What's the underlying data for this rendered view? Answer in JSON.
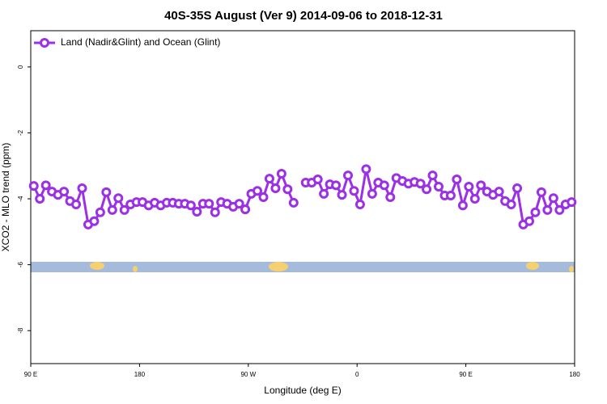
{
  "chart_data": {
    "type": "line",
    "title": "40S-35S August (Ver 9)   2014-09-06 to 2018-12-31",
    "x_label": "Longitude (deg E)",
    "y_label": "XCO2 - MLO trend (ppm)",
    "legend_position": "upper left",
    "xlim": [
      90,
      540
    ],
    "ylim": [
      -9,
      1.1
    ],
    "xticks": [
      {
        "value": 90,
        "label": "90 E"
      },
      180,
      {
        "value": 270,
        "label": "90 W"
      },
      {
        "value": 360,
        "label": "0"
      },
      {
        "value": 450,
        "label": "90 E"
      },
      {
        "value": 540,
        "label": "180"
      }
    ],
    "yticks": [
      0,
      -2,
      -4,
      -6,
      -8
    ],
    "x": [
      92.5,
      97.5,
      102.5,
      107.5,
      112.5,
      117.5,
      122.5,
      127.5,
      132.5,
      137.5,
      142.5,
      147.5,
      152.5,
      157.5,
      162.5,
      167.5,
      172.5,
      177.5,
      182.5,
      187.5,
      192.5,
      197.5,
      202.5,
      207.5,
      212.5,
      217.5,
      222.5,
      227.5,
      232.5,
      237.5,
      242.5,
      247.5,
      252.5,
      257.5,
      262.5,
      267.5,
      272.5,
      277.5,
      282.5,
      287.5,
      292.5,
      297.5,
      302.5,
      307.5,
      312.5,
      317.5,
      322.5,
      327.5,
      332.5,
      337.5,
      342.5,
      347.5,
      352.5,
      357.5,
      362.5,
      367.5,
      372.5,
      377.5,
      382.5,
      387.5,
      392.5,
      397.5,
      402.5,
      407.5,
      412.5,
      417.5,
      422.5,
      427.5,
      432.5,
      437.5,
      442.5,
      447.5,
      452.5,
      457.5,
      462.5,
      467.5,
      472.5,
      477.5,
      482.5,
      487.5,
      492.5,
      497.5,
      502.5,
      507.5,
      512.5,
      517.5,
      522.5,
      527.5,
      532.5,
      537.5
    ],
    "series": [
      {
        "name": "Land (Nadir&Glint) and Ocean (Glint)",
        "color": "#9b30e6",
        "values": [
          -3.61,
          -4.0,
          -3.59,
          -3.78,
          -3.88,
          -3.78,
          -4.07,
          -4.17,
          -3.68,
          -4.78,
          -4.68,
          -4.41,
          -3.8,
          -4.34,
          -3.98,
          -4.34,
          -4.17,
          -4.1,
          -4.1,
          -4.2,
          -4.12,
          -4.2,
          -4.12,
          -4.12,
          -4.15,
          -4.15,
          -4.2,
          -4.39,
          -4.15,
          -4.15,
          -4.41,
          -4.1,
          -4.15,
          -4.24,
          -4.15,
          -4.32,
          -3.85,
          -3.76,
          -3.95,
          -3.39,
          -3.68,
          -3.24,
          -3.71,
          -4.12,
          null,
          -3.51,
          -3.51,
          -3.41,
          -3.85,
          -3.56,
          -3.59,
          -3.88,
          -3.29,
          -3.76,
          -4.17,
          -3.1,
          -3.85,
          -3.51,
          -3.59,
          -3.95,
          -3.37,
          -3.46,
          -3.54,
          -3.49,
          -3.54,
          -3.71,
          -3.29,
          -3.63,
          -3.9,
          -3.9,
          -3.41,
          -4.2,
          -3.63,
          -4.0,
          -3.59,
          -3.78,
          -3.88,
          -3.78,
          -4.07,
          -4.17,
          -3.68,
          -4.78,
          -4.68,
          -4.41,
          -3.8,
          -4.34,
          -3.98,
          -4.34,
          -4.17,
          -4.1
        ]
      }
    ]
  }
}
